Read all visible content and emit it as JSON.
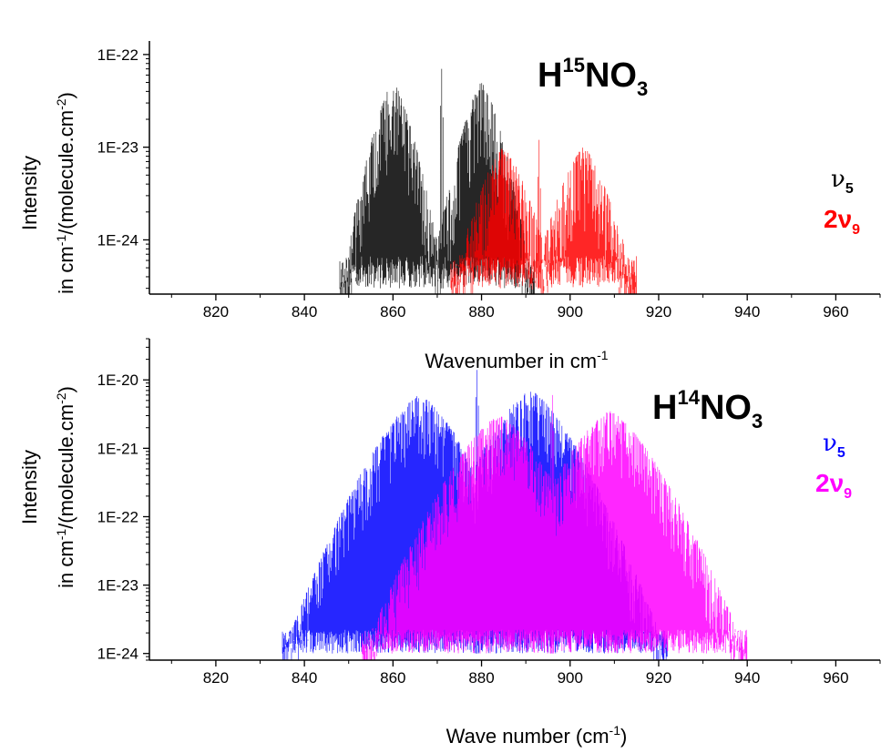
{
  "colors": {
    "top_nu5": "#000000",
    "top_2nu9": "#ff0000",
    "bottom_nu5": "#0000ff",
    "bottom_2nu9": "#ff00ff"
  },
  "chart_data": [
    {
      "type": "line",
      "panel": "top",
      "title_main": "H",
      "title_sup": "15",
      "title_mid": "NO",
      "title_sub": "3",
      "ylabel_line1": "Intensity",
      "ylabel_line2_pre": "in cm",
      "ylabel_line2_sup1": "-1",
      "ylabel_line2_mid": "/(molecule.cm",
      "ylabel_line2_sup2": "-2",
      "ylabel_line2_post": ")",
      "xlabel_pre": "Wavenumber in cm",
      "xlabel_sup": "-1",
      "xlim": [
        805,
        970
      ],
      "ylim": [
        2.6e-25,
        1.4e-22
      ],
      "yscale": "log",
      "x_ticks": [
        820,
        840,
        860,
        880,
        900,
        920,
        940,
        960
      ],
      "x_tick_labels": [
        "820",
        "840",
        "860",
        "880",
        "900",
        "920",
        "940",
        "960"
      ],
      "y_ticks": [
        1e-24,
        1e-23,
        1e-22
      ],
      "y_tick_labels": [
        "1E-24",
        "1E-23",
        "1E-22"
      ],
      "legend": {
        "placement": "right",
        "items": [
          {
            "symbol": "ν",
            "sub": "5",
            "prefix": "",
            "color": "#000000"
          },
          {
            "symbol": "ν",
            "sub": "9",
            "prefix": "2",
            "color": "#ff0000"
          }
        ]
      },
      "series": [
        {
          "name": "ν5",
          "color": "#000000",
          "x_min": 830,
          "x_max": 907,
          "floor": 3e-25,
          "lobes": [
            {
              "center": 860,
              "peak": 5e-23,
              "width": 8,
              "max_width": 12
            },
            {
              "center": 880,
              "peak": 5e-23,
              "width": 7,
              "max_width": 12
            }
          ],
          "q_branch": {
            "center": 871,
            "peak": 7e-23
          }
        },
        {
          "name": "2ν9",
          "color": "#ff0000",
          "x_min": 848,
          "x_max": 922,
          "floor": 3e-25,
          "lobes": [
            {
              "center": 885,
              "peak": 1e-23,
              "width": 7,
              "max_width": 12
            },
            {
              "center": 903,
              "peak": 1e-23,
              "width": 6,
              "max_width": 12
            }
          ],
          "q_branch": {
            "center": 893,
            "peak": 1.2e-23
          }
        }
      ]
    },
    {
      "type": "line",
      "panel": "bottom",
      "title_main": "H",
      "title_sup": "14",
      "title_mid": "NO",
      "title_sub": "3",
      "ylabel_line1": "Intensity",
      "ylabel_line2_pre": "in cm",
      "ylabel_line2_sup1": "-1",
      "ylabel_line2_mid": "/(molecule.cm",
      "ylabel_line2_sup2": "-2",
      "ylabel_line2_post": ")",
      "xlabel_pre": "Wave number (cm",
      "xlabel_sup": "-1",
      "xlabel_post": ")",
      "xlim": [
        805,
        970
      ],
      "ylim": [
        8e-25,
        4e-20
      ],
      "yscale": "log",
      "x_ticks": [
        820,
        840,
        860,
        880,
        900,
        920,
        940,
        960
      ],
      "x_tick_labels": [
        "820",
        "840",
        "860",
        "880",
        "900",
        "920",
        "940",
        "960"
      ],
      "y_ticks": [
        1e-24,
        1e-23,
        1e-22,
        1e-21,
        1e-20
      ],
      "y_tick_labels": [
        "1E-24",
        "1E-23",
        "1E-22",
        "1E-21",
        "1E-20"
      ],
      "legend": {
        "placement": "right",
        "items": [
          {
            "symbol": "ν",
            "sub": "5",
            "prefix": "",
            "color": "#0000ff"
          },
          {
            "symbol": "ν",
            "sub": "9",
            "prefix": "2",
            "color": "#ff00ff"
          }
        ]
      },
      "series": [
        {
          "name": "ν5",
          "color": "#0000ff",
          "x_min": 806,
          "x_max": 963,
          "floor": 1e-24,
          "lobes": [
            {
              "center": 866,
              "peak": 6e-21,
              "width": 9,
              "max_width": 31
            },
            {
              "center": 891,
              "peak": 7e-21,
              "width": 9,
              "max_width": 31
            }
          ],
          "q_branch": {
            "center": 879,
            "peak": 1.4e-20
          }
        },
        {
          "name": "2ν9",
          "color": "#ff00ff",
          "x_min": 806,
          "x_max": 963,
          "floor": 1e-24,
          "lobes": [
            {
              "center": 884,
              "peak": 3e-21,
              "width": 10,
              "max_width": 31
            },
            {
              "center": 909,
              "peak": 3.5e-21,
              "width": 10,
              "max_width": 31
            }
          ],
          "q_branch": {
            "center": 896,
            "peak": 6e-21
          }
        }
      ]
    }
  ]
}
